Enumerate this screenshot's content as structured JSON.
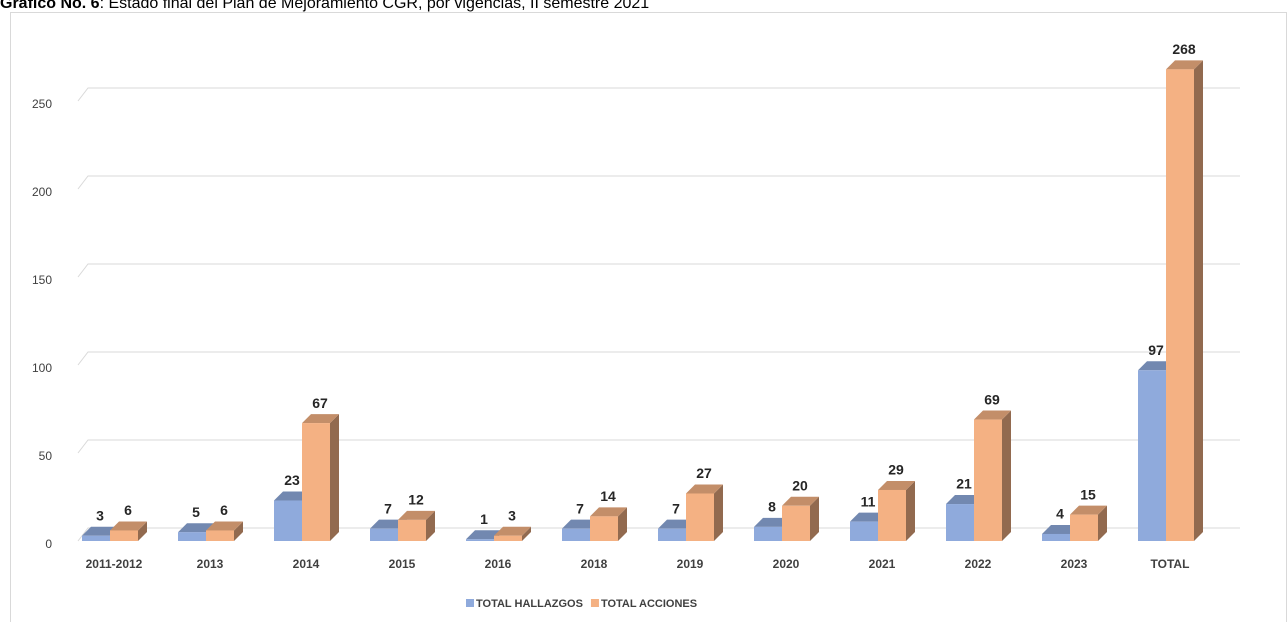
{
  "chart_data": {
    "type": "bar3d",
    "title_label": "Gráfico No. 6",
    "title": ": Estado final del Plan de Mejoramiento CGR, por vigencias, II semestre 2021",
    "categories": [
      "2011-2012",
      "2013",
      "2014",
      "2015",
      "2016",
      "2018",
      "2019",
      "2020",
      "2021",
      "2022",
      "2023",
      "TOTAL"
    ],
    "series": [
      {
        "name": "TOTAL HALLAZGOS",
        "color": "#8faadc",
        "values": [
          3,
          5,
          23,
          7,
          1,
          7,
          7,
          8,
          11,
          21,
          4,
          97
        ]
      },
      {
        "name": "TOTAL ACCIONES",
        "color": "#f4b183",
        "values": [
          6,
          6,
          67,
          12,
          3,
          14,
          27,
          20,
          29,
          69,
          15,
          268
        ]
      }
    ],
    "ylim": [
      0,
      250
    ],
    "yticks": [
      0,
      50,
      100,
      150,
      200,
      250
    ],
    "grid": true,
    "legend": "bottom"
  }
}
